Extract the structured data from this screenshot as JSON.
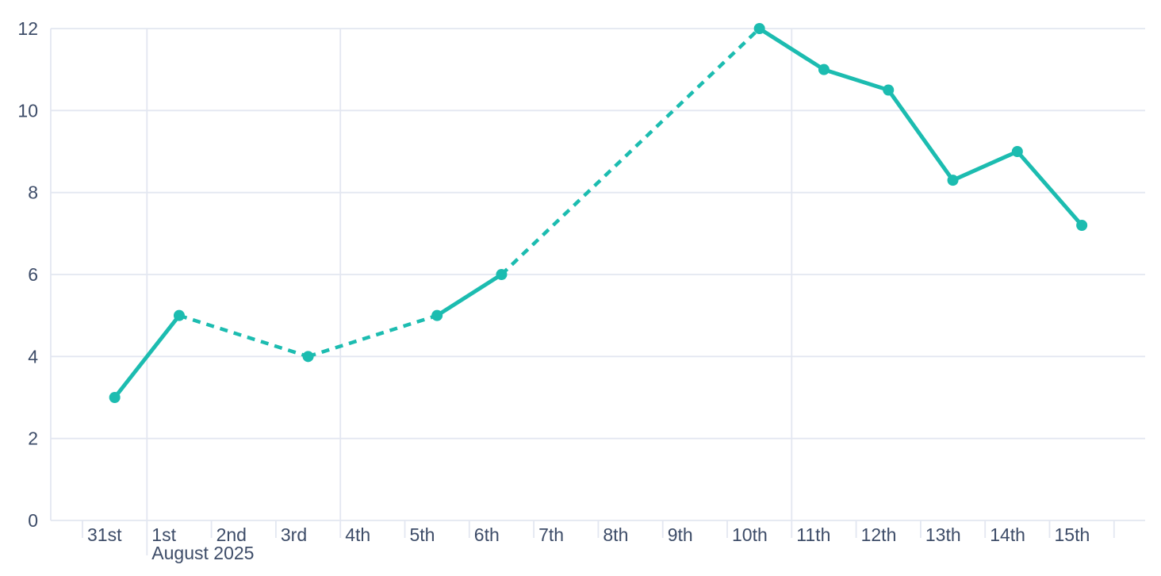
{
  "chart_data": {
    "type": "line",
    "x_axis": {
      "unit": "day",
      "tick_labels": [
        "31st",
        "1st",
        "2nd",
        "3rd",
        "4th",
        "5th",
        "6th",
        "7th",
        "8th",
        "9th",
        "10th",
        "11th",
        "12th",
        "13th",
        "14th",
        "15th"
      ],
      "month_label": {
        "text": "August 2025",
        "under_label": "1st"
      },
      "vertical_gridlines_at": [
        "1st",
        "4th",
        "11th"
      ],
      "trailing_unlabeled_tick": true
    },
    "y_axis": {
      "tick_labels": [
        "0",
        "2",
        "4",
        "6",
        "8",
        "10",
        "12"
      ],
      "range": [
        0,
        12
      ]
    },
    "series": [
      {
        "name": "daily-values",
        "color": "#1cbcb0",
        "marker": "circle",
        "points": [
          {
            "day": "31st",
            "value": 3
          },
          {
            "day": "1st",
            "value": 5
          },
          {
            "day": "3rd",
            "value": 4
          },
          {
            "day": "5th",
            "value": 5
          },
          {
            "day": "6th",
            "value": 6
          },
          {
            "day": "10th",
            "value": 12
          },
          {
            "day": "11th",
            "value": 11
          },
          {
            "day": "12th",
            "value": 10.5
          },
          {
            "day": "13th",
            "value": 8.3
          },
          {
            "day": "14th",
            "value": 9
          },
          {
            "day": "15th",
            "value": 7.2
          }
        ],
        "segments": [
          {
            "from": "31st",
            "to": "1st",
            "style": "solid"
          },
          {
            "from": "1st",
            "to": "3rd",
            "style": "dashed"
          },
          {
            "from": "3rd",
            "to": "5th",
            "style": "dashed"
          },
          {
            "from": "5th",
            "to": "6th",
            "style": "solid"
          },
          {
            "from": "6th",
            "to": "10th",
            "style": "dashed"
          },
          {
            "from": "10th",
            "to": "15th",
            "style": "solid"
          }
        ]
      }
    ],
    "grid": true,
    "legend": false,
    "colors": {
      "line": "#1cbcb0",
      "grid": "#e3e7f1",
      "axis_label": "#3d4c68",
      "background": "#ffffff"
    }
  }
}
